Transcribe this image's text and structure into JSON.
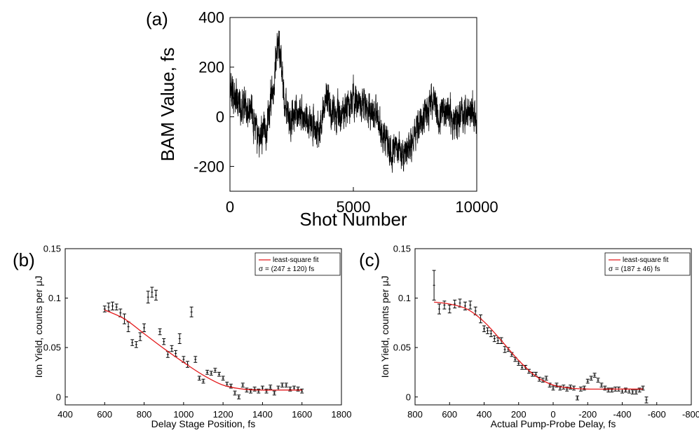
{
  "chart_data": [
    {
      "panel_label": "(a)",
      "type": "line",
      "title": "",
      "xlabel": "Shot Number",
      "ylabel": "BAM Value, fs",
      "xlim": [
        0,
        10000
      ],
      "ylim": [
        -300,
        400
      ],
      "xticks": [
        0,
        5000,
        10000
      ],
      "yticks": [
        -200,
        0,
        200,
        400
      ],
      "xtick_labels": [
        "0",
        "5000",
        "10000"
      ],
      "ytick_labels": [
        "-200",
        "0",
        "200",
        "400"
      ],
      "grid": false,
      "series": [
        {
          "color": "#000000",
          "trend": {
            "x": [
              0,
              300,
              600,
              900,
              1100,
              1300,
              1500,
              1700,
              1850,
              1950,
              2050,
              2200,
              2400,
              2700,
              3000,
              3300,
              3600,
              3900,
              4100,
              4400,
              4700,
              5000,
              5300,
              5600,
              5900,
              6100,
              6300,
              6500,
              6700,
              6900,
              7100,
              7300,
              7600,
              7900,
              8200,
              8500,
              8800,
              9100,
              9400,
              9700,
              10000
            ],
            "y": [
              120,
              60,
              30,
              10,
              -90,
              -60,
              -30,
              80,
              230,
              320,
              250,
              70,
              -10,
              20,
              0,
              -20,
              -60,
              70,
              20,
              0,
              30,
              80,
              60,
              40,
              20,
              -60,
              -70,
              -150,
              -120,
              -140,
              -170,
              -120,
              -40,
              0,
              70,
              -10,
              40,
              -30,
              10,
              30,
              0
            ]
          },
          "noise_amplitude": 55
        }
      ]
    },
    {
      "panel_label": "(b)",
      "type": "scatter",
      "title": "",
      "xlabel": "Delay Stage Position, fs",
      "ylabel": "Ion Yield, counts per μJ",
      "xlim": [
        400,
        1800
      ],
      "ylim": [
        -0.008,
        0.15
      ],
      "xticks": [
        400,
        600,
        800,
        1000,
        1200,
        1400,
        1600,
        1800
      ],
      "yticks": [
        0,
        0.05,
        0.1,
        0.15
      ],
      "xtick_labels": [
        "400",
        "600",
        "800",
        "1000",
        "1200",
        "1400",
        "1600",
        "1800"
      ],
      "ytick_labels": [
        "0",
        "0.05",
        "0.1",
        "0.15"
      ],
      "grid": false,
      "legend": {
        "placement": "top-right",
        "line_label": "least-square fit",
        "sigma_text": "σ = (247 ± 120) fs"
      },
      "series": [
        {
          "kind": "errorbar",
          "color": "#000000",
          "x": [
            600,
            620,
            640,
            660,
            680,
            700,
            720,
            740,
            760,
            780,
            800,
            820,
            840,
            860,
            880,
            900,
            920,
            940,
            960,
            980,
            1000,
            1020,
            1040,
            1060,
            1080,
            1100,
            1120,
            1140,
            1160,
            1180,
            1200,
            1220,
            1240,
            1260,
            1280,
            1300,
            1320,
            1340,
            1360,
            1380,
            1400,
            1420,
            1440,
            1460,
            1480,
            1500,
            1520,
            1540,
            1560,
            1580,
            1600
          ],
          "y": [
            0.089,
            0.091,
            0.092,
            0.091,
            0.085,
            0.079,
            0.071,
            0.055,
            0.053,
            0.061,
            0.07,
            0.101,
            0.106,
            0.103,
            0.066,
            0.056,
            0.043,
            0.049,
            0.044,
            0.059,
            0.038,
            0.033,
            0.086,
            0.038,
            0.019,
            0.016,
            0.025,
            0.024,
            0.027,
            0.023,
            0.019,
            0.013,
            0.011,
            0.004,
            0.0,
            0.012,
            0.007,
            0.006,
            0.008,
            0.006,
            0.009,
            0.006,
            0.01,
            0.004,
            0.009,
            0.012,
            0.012,
            0.008,
            0.009,
            0.008,
            0.006
          ],
          "err": [
            0.003,
            0.004,
            0.004,
            0.003,
            0.004,
            0.005,
            0.005,
            0.003,
            0.003,
            0.004,
            0.004,
            0.006,
            0.005,
            0.005,
            0.003,
            0.003,
            0.003,
            0.003,
            0.003,
            0.005,
            0.003,
            0.003,
            0.005,
            0.003,
            0.002,
            0.002,
            0.002,
            0.002,
            0.002,
            0.002,
            0.002,
            0.002,
            0.002,
            0.002,
            0.002,
            0.002,
            0.002,
            0.002,
            0.002,
            0.002,
            0.002,
            0.002,
            0.002,
            0.002,
            0.002,
            0.002,
            0.002,
            0.002,
            0.002,
            0.002,
            0.002
          ]
        },
        {
          "kind": "fit",
          "color": "#e31a1c",
          "x": [
            600,
            700,
            800,
            900,
            1000,
            1100,
            1200,
            1300,
            1400,
            1500,
            1600
          ],
          "y": [
            0.088,
            0.079,
            0.064,
            0.049,
            0.035,
            0.022,
            0.012,
            0.008,
            0.007,
            0.007,
            0.007
          ]
        }
      ]
    },
    {
      "panel_label": "(c)",
      "type": "scatter",
      "title": "",
      "xlabel": "Actual Pump-Probe Delay, fs",
      "ylabel": "Ion Yield, counts per μJ",
      "xlim": [
        800,
        -800
      ],
      "ylim": [
        -0.008,
        0.15
      ],
      "xticks": [
        800,
        600,
        400,
        200,
        0,
        -200,
        -400,
        -600,
        -800
      ],
      "yticks": [
        0,
        0.05,
        0.1,
        0.15
      ],
      "xtick_labels": [
        "800",
        "600",
        "400",
        "200",
        "0",
        "-200",
        "-400",
        "-600",
        "-800"
      ],
      "ytick_labels": [
        "0",
        "0.05",
        "0.1",
        "0.15"
      ],
      "grid": false,
      "legend": {
        "placement": "top-right",
        "line_label": "least-square fit",
        "sigma_text": "σ = (187 ± 46) fs"
      },
      "series": [
        {
          "kind": "errorbar",
          "color": "#000000",
          "x": [
            690,
            660,
            630,
            600,
            570,
            540,
            510,
            480,
            450,
            420,
            400,
            380,
            360,
            340,
            320,
            300,
            280,
            260,
            240,
            220,
            200,
            180,
            160,
            140,
            120,
            100,
            80,
            60,
            40,
            20,
            0,
            -20,
            -40,
            -60,
            -80,
            -100,
            -120,
            -140,
            -160,
            -180,
            -200,
            -220,
            -240,
            -260,
            -280,
            -300,
            -320,
            -340,
            -360,
            -380,
            -400,
            -420,
            -440,
            -460,
            -480,
            -500,
            -520,
            -540
          ],
          "y": [
            0.113,
            0.089,
            0.093,
            0.089,
            0.094,
            0.095,
            0.092,
            0.093,
            0.087,
            0.079,
            0.069,
            0.067,
            0.064,
            0.059,
            0.057,
            0.057,
            0.048,
            0.048,
            0.043,
            0.038,
            0.034,
            0.03,
            0.03,
            0.026,
            0.023,
            0.023,
            0.018,
            0.017,
            0.019,
            0.012,
            0.009,
            0.012,
            0.009,
            0.01,
            0.008,
            0.01,
            0.009,
            -0.001,
            0.008,
            0.009,
            0.016,
            0.019,
            0.022,
            0.017,
            0.012,
            0.009,
            0.007,
            0.007,
            0.008,
            0.008,
            0.006,
            0.007,
            0.006,
            0.005,
            0.005,
            0.007,
            0.009,
            -0.003
          ],
          "err": [
            0.015,
            0.005,
            0.004,
            0.004,
            0.004,
            0.004,
            0.004,
            0.004,
            0.004,
            0.004,
            0.003,
            0.003,
            0.003,
            0.003,
            0.003,
            0.003,
            0.003,
            0.002,
            0.002,
            0.002,
            0.002,
            0.002,
            0.002,
            0.002,
            0.002,
            0.002,
            0.002,
            0.002,
            0.002,
            0.002,
            0.002,
            0.002,
            0.002,
            0.002,
            0.002,
            0.002,
            0.002,
            0.002,
            0.002,
            0.002,
            0.002,
            0.002,
            0.002,
            0.002,
            0.002,
            0.002,
            0.002,
            0.002,
            0.002,
            0.002,
            0.002,
            0.002,
            0.002,
            0.002,
            0.002,
            0.002,
            0.002,
            0.003
          ]
        },
        {
          "kind": "fit",
          "color": "#e31a1c",
          "x": [
            690,
            600,
            500,
            400,
            300,
            200,
            100,
            0,
            -100,
            -200,
            -300,
            -400,
            -520
          ],
          "y": [
            0.096,
            0.094,
            0.089,
            0.076,
            0.057,
            0.037,
            0.021,
            0.012,
            0.009,
            0.008,
            0.008,
            0.008,
            0.008
          ]
        }
      ]
    }
  ]
}
